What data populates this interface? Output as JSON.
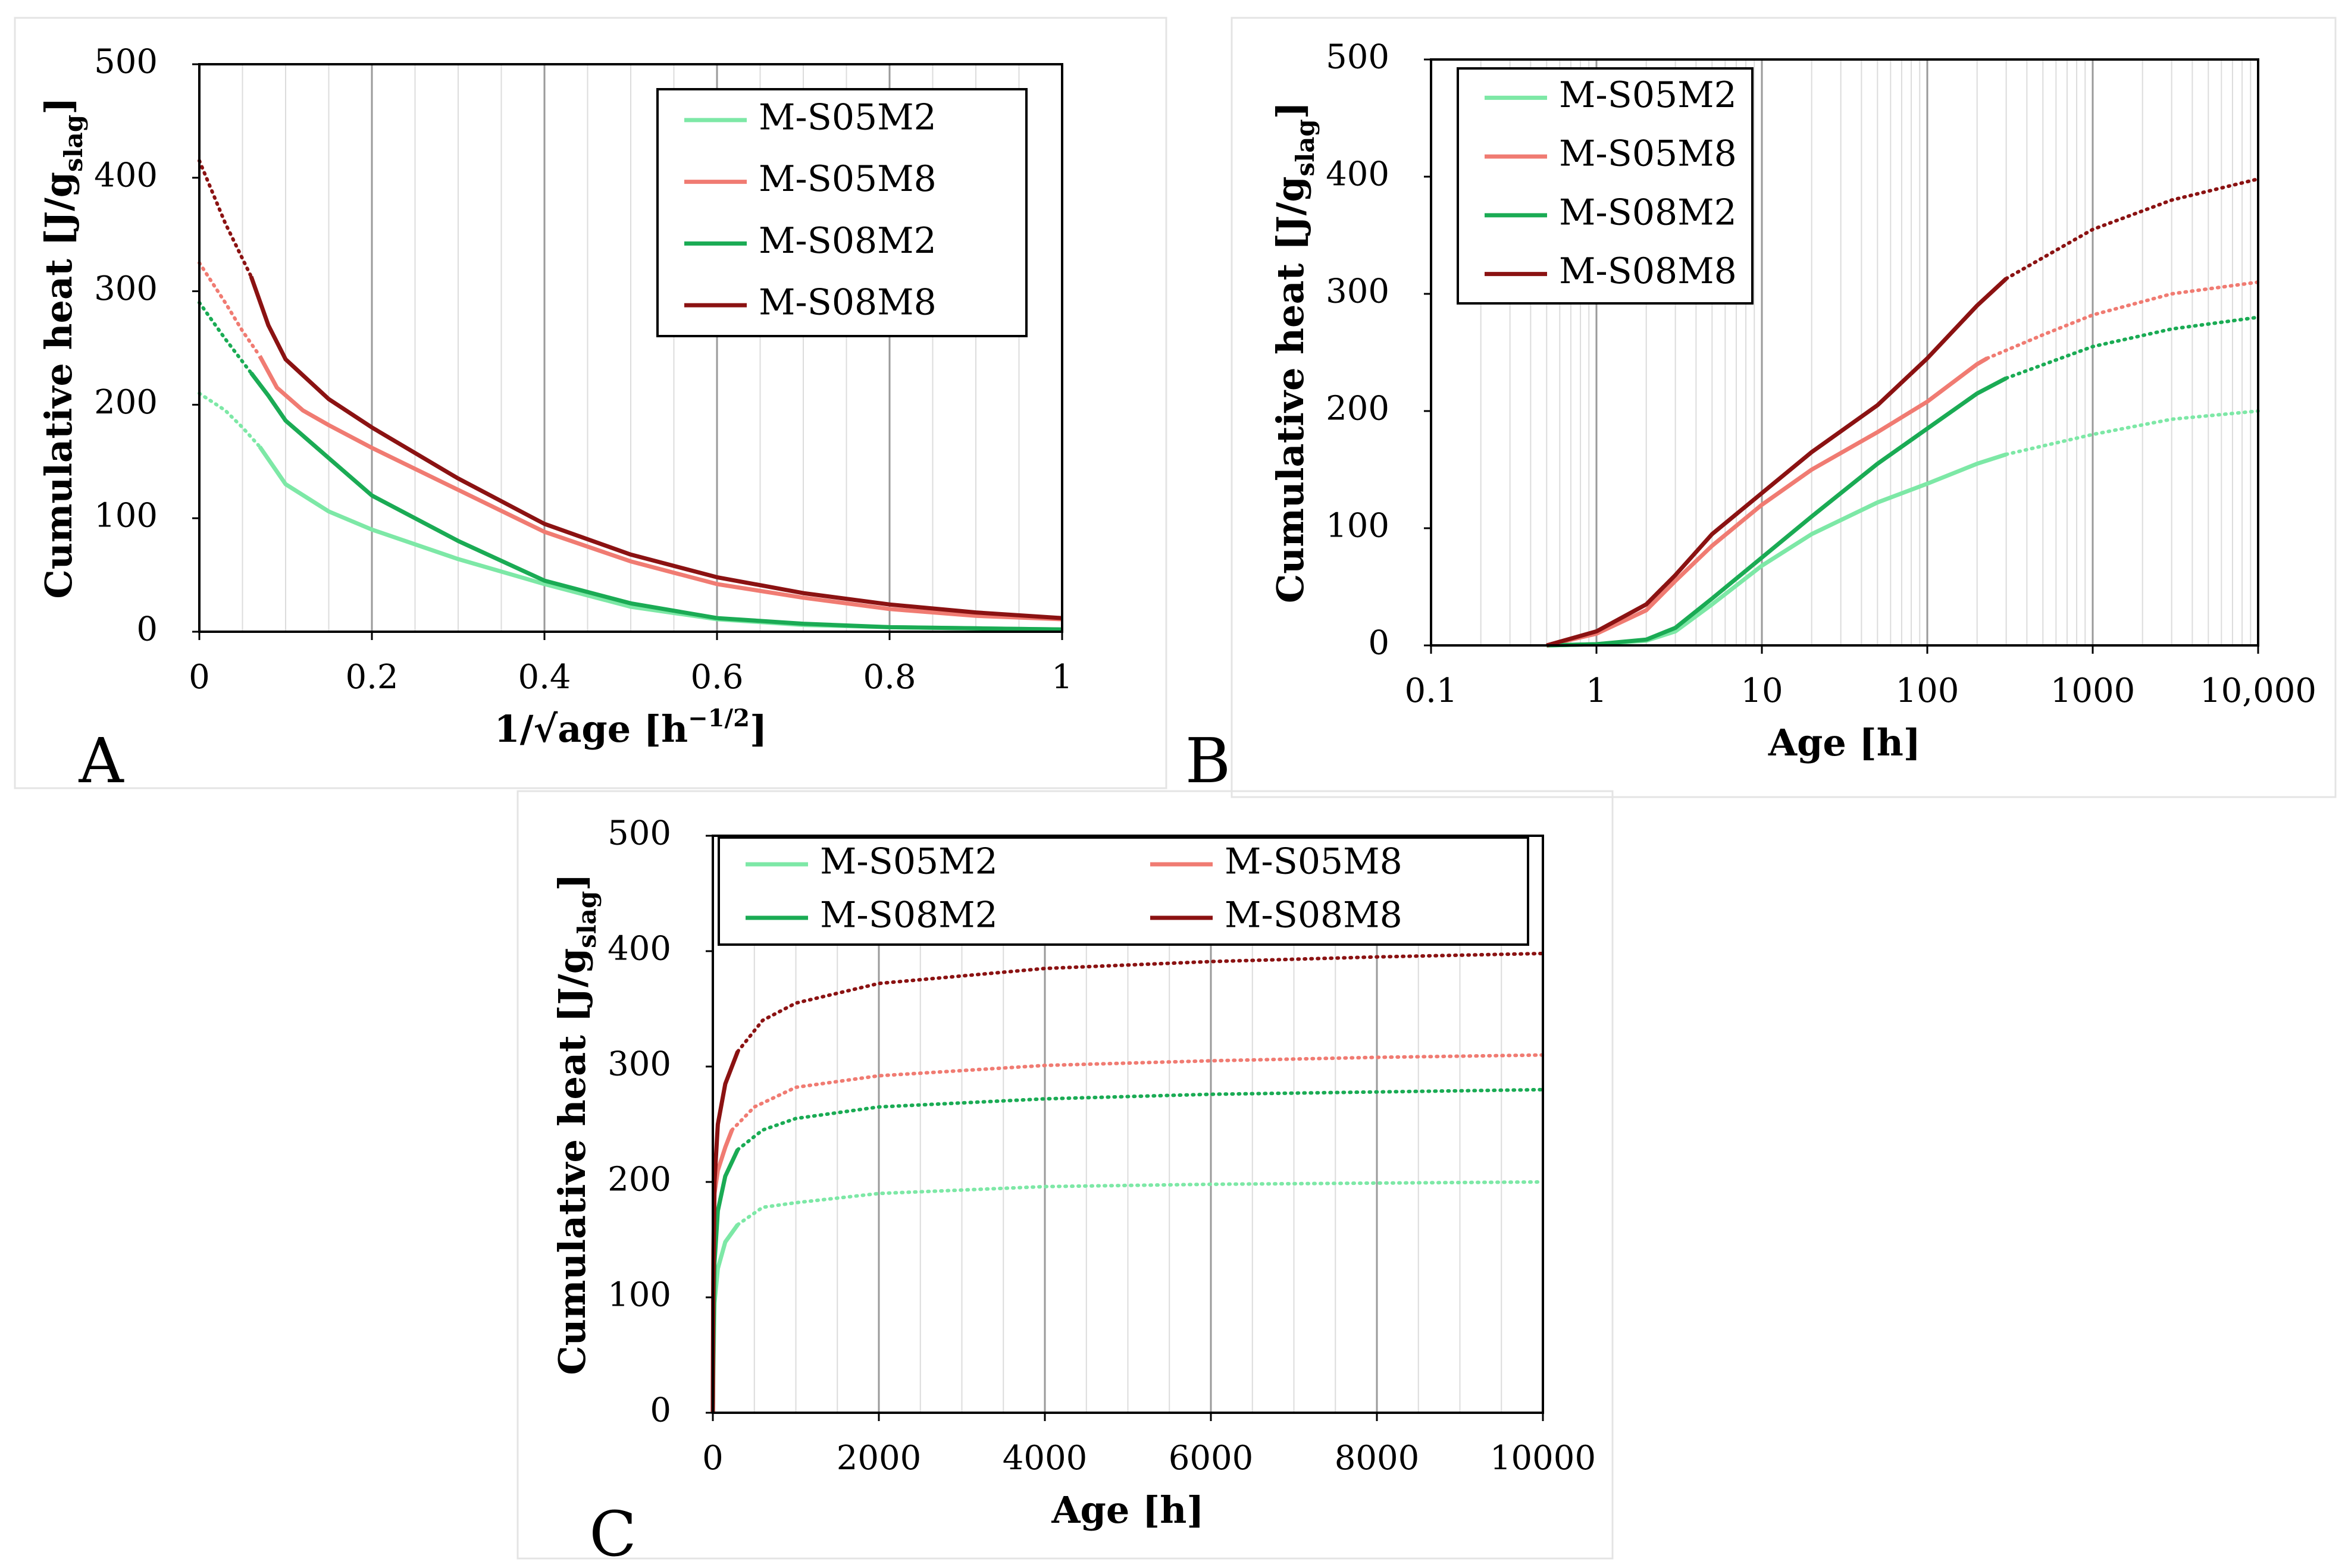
{
  "figure": {
    "series_colors": {
      "M-S05M2": "#7de8a6",
      "M-S05M8": "#f07b72",
      "M-S08M2": "#1aab54",
      "M-S08M8": "#8b1212"
    }
  },
  "chart_data": [
    {
      "panel": "A",
      "type": "line",
      "xlabel": "1/√age [h⁻¹ᐟ²]",
      "xlabel_text": "1/√age [h",
      "xlabel_sup": "−1/2",
      "xlabel_end": "]",
      "ylabel_main": "Cumulative heat [J/g",
      "ylabel_sub": "slag",
      "ylabel_end": "]",
      "xlim": [
        0,
        1
      ],
      "ylim": [
        0,
        500
      ],
      "xticks": [
        "0",
        "0.2",
        "0.4",
        "0.6",
        "0.8",
        "1"
      ],
      "yticks": [
        "0",
        "100",
        "200",
        "300",
        "400",
        "500"
      ],
      "legend_position": "top-right",
      "series": [
        {
          "name": "M-S05M2",
          "solid": [
            [
              0.07,
              163
            ],
            [
              0.1,
              130
            ],
            [
              0.15,
              106
            ],
            [
              0.2,
              90
            ],
            [
              0.3,
              64
            ],
            [
              0.4,
              42
            ],
            [
              0.5,
              22
            ],
            [
              0.6,
              11
            ],
            [
              0.7,
              6
            ],
            [
              0.8,
              4
            ],
            [
              0.9,
              3
            ],
            [
              1.0,
              2
            ]
          ],
          "dotted": [
            [
              0.0,
              210
            ],
            [
              0.03,
              195
            ],
            [
              0.05,
              180
            ],
            [
              0.07,
              163
            ]
          ]
        },
        {
          "name": "M-S05M8",
          "solid": [
            [
              0.07,
              243
            ],
            [
              0.09,
              215
            ],
            [
              0.12,
              195
            ],
            [
              0.15,
              182
            ],
            [
              0.2,
              162
            ],
            [
              0.3,
              125
            ],
            [
              0.4,
              88
            ],
            [
              0.5,
              62
            ],
            [
              0.6,
              42
            ],
            [
              0.7,
              30
            ],
            [
              0.8,
              20
            ],
            [
              0.9,
              14
            ],
            [
              1.0,
              11
            ]
          ],
          "dotted": [
            [
              0.0,
              325
            ],
            [
              0.03,
              290
            ],
            [
              0.05,
              265
            ],
            [
              0.07,
              243
            ]
          ]
        },
        {
          "name": "M-S08M2",
          "solid": [
            [
              0.06,
              228
            ],
            [
              0.08,
              208
            ],
            [
              0.1,
              186
            ],
            [
              0.15,
              153
            ],
            [
              0.2,
              120
            ],
            [
              0.3,
              80
            ],
            [
              0.4,
              45
            ],
            [
              0.5,
              25
            ],
            [
              0.6,
              12
            ],
            [
              0.7,
              7
            ],
            [
              0.8,
              4
            ],
            [
              0.9,
              3
            ],
            [
              1.0,
              2
            ]
          ],
          "dotted": [
            [
              0.0,
              290
            ],
            [
              0.03,
              258
            ],
            [
              0.06,
              228
            ]
          ]
        },
        {
          "name": "M-S08M8",
          "solid": [
            [
              0.06,
              313
            ],
            [
              0.08,
              270
            ],
            [
              0.1,
              240
            ],
            [
              0.15,
              205
            ],
            [
              0.2,
              180
            ],
            [
              0.3,
              135
            ],
            [
              0.4,
              95
            ],
            [
              0.5,
              68
            ],
            [
              0.6,
              48
            ],
            [
              0.7,
              34
            ],
            [
              0.8,
              24
            ],
            [
              0.9,
              17
            ],
            [
              1.0,
              12
            ]
          ],
          "dotted": [
            [
              0.0,
              415
            ],
            [
              0.03,
              360
            ],
            [
              0.06,
              313
            ]
          ]
        }
      ]
    },
    {
      "panel": "B",
      "type": "line",
      "xscale": "log",
      "xlabel": "Age [h]",
      "ylabel_main": "Cumulative heat [J/g",
      "ylabel_sub": "slag",
      "ylabel_end": "]",
      "xlim": [
        0.1,
        10000
      ],
      "ylim": [
        0,
        500
      ],
      "xticks": [
        "0.1",
        "1",
        "10",
        "100",
        "1000",
        "10,000"
      ],
      "yticks": [
        "0",
        "100",
        "200",
        "300",
        "400",
        "500"
      ],
      "legend_position": "top-left",
      "series": [
        {
          "name": "M-S05M2",
          "solid": [
            [
              0.5,
              0
            ],
            [
              1,
              1
            ],
            [
              2,
              4
            ],
            [
              3,
              12
            ],
            [
              5,
              35
            ],
            [
              10,
              68
            ],
            [
              20,
              95
            ],
            [
              50,
              122
            ],
            [
              100,
              138
            ],
            [
              200,
              155
            ],
            [
              300,
              163
            ]
          ],
          "dotted": [
            [
              300,
              163
            ],
            [
              1000,
              180
            ],
            [
              3000,
              193
            ],
            [
              10000,
              200
            ]
          ]
        },
        {
          "name": "M-S05M8",
          "solid": [
            [
              0.5,
              0
            ],
            [
              1,
              10
            ],
            [
              2,
              30
            ],
            [
              3,
              55
            ],
            [
              5,
              85
            ],
            [
              10,
              120
            ],
            [
              20,
              150
            ],
            [
              50,
              182
            ],
            [
              100,
              208
            ],
            [
              200,
              240
            ],
            [
              230,
              245
            ]
          ],
          "dotted": [
            [
              230,
              245
            ],
            [
              500,
              265
            ],
            [
              1000,
              282
            ],
            [
              3000,
              300
            ],
            [
              10000,
              310
            ]
          ]
        },
        {
          "name": "M-S08M2",
          "solid": [
            [
              0.5,
              0
            ],
            [
              1,
              1
            ],
            [
              2,
              5
            ],
            [
              3,
              15
            ],
            [
              5,
              40
            ],
            [
              10,
              75
            ],
            [
              20,
              110
            ],
            [
              50,
              155
            ],
            [
              100,
              185
            ],
            [
              200,
              215
            ],
            [
              300,
              228
            ]
          ],
          "dotted": [
            [
              300,
              228
            ],
            [
              1000,
              255
            ],
            [
              3000,
              270
            ],
            [
              10000,
              280
            ]
          ]
        },
        {
          "name": "M-S08M8",
          "solid": [
            [
              0.5,
              0
            ],
            [
              1,
              12
            ],
            [
              2,
              35
            ],
            [
              3,
              60
            ],
            [
              5,
              95
            ],
            [
              10,
              130
            ],
            [
              20,
              165
            ],
            [
              50,
              205
            ],
            [
              100,
              245
            ],
            [
              200,
              290
            ],
            [
              300,
              313
            ]
          ],
          "dotted": [
            [
              300,
              313
            ],
            [
              1000,
              355
            ],
            [
              3000,
              380
            ],
            [
              10000,
              398
            ]
          ]
        }
      ]
    },
    {
      "panel": "C",
      "type": "line",
      "xlabel": "Age [h]",
      "ylabel_main": "Cumulative heat [J/g",
      "ylabel_sub": "slag",
      "ylabel_end": "]",
      "xlim": [
        0,
        10000
      ],
      "ylim": [
        0,
        500
      ],
      "xticks": [
        "0",
        "2000",
        "4000",
        "6000",
        "8000",
        "10000"
      ],
      "yticks": [
        "0",
        "100",
        "200",
        "300",
        "400",
        "500"
      ],
      "legend_position": "top",
      "series": [
        {
          "name": "M-S05M2",
          "solid": [
            [
              0,
              0
            ],
            [
              5,
              30
            ],
            [
              20,
              95
            ],
            [
              60,
              125
            ],
            [
              150,
              148
            ],
            [
              300,
              163
            ]
          ],
          "dotted": [
            [
              300,
              163
            ],
            [
              600,
              178
            ],
            [
              1000,
              182
            ],
            [
              2000,
              190
            ],
            [
              4000,
              196
            ],
            [
              6000,
              198
            ],
            [
              8000,
              199
            ],
            [
              10000,
              200
            ]
          ]
        },
        {
          "name": "M-S05M8",
          "solid": [
            [
              0,
              0
            ],
            [
              5,
              140
            ],
            [
              20,
              190
            ],
            [
              60,
              210
            ],
            [
              150,
              230
            ],
            [
              230,
              245
            ]
          ],
          "dotted": [
            [
              230,
              245
            ],
            [
              500,
              265
            ],
            [
              1000,
              282
            ],
            [
              2000,
              292
            ],
            [
              4000,
              301
            ],
            [
              6000,
              305
            ],
            [
              8000,
              308
            ],
            [
              10000,
              310
            ]
          ]
        },
        {
          "name": "M-S08M2",
          "solid": [
            [
              0,
              0
            ],
            [
              5,
              50
            ],
            [
              20,
              130
            ],
            [
              60,
              175
            ],
            [
              150,
              205
            ],
            [
              300,
              228
            ]
          ],
          "dotted": [
            [
              300,
              228
            ],
            [
              600,
              245
            ],
            [
              1000,
              255
            ],
            [
              2000,
              265
            ],
            [
              4000,
              272
            ],
            [
              6000,
              276
            ],
            [
              8000,
              278
            ],
            [
              10000,
              280
            ]
          ]
        },
        {
          "name": "M-S08M8",
          "solid": [
            [
              0,
              0
            ],
            [
              5,
              100
            ],
            [
              20,
              200
            ],
            [
              60,
              250
            ],
            [
              150,
              285
            ],
            [
              300,
              313
            ]
          ],
          "dotted": [
            [
              300,
              313
            ],
            [
              600,
              340
            ],
            [
              1000,
              355
            ],
            [
              2000,
              372
            ],
            [
              4000,
              385
            ],
            [
              6000,
              391
            ],
            [
              8000,
              395
            ],
            [
              10000,
              398
            ]
          ]
        }
      ]
    }
  ]
}
